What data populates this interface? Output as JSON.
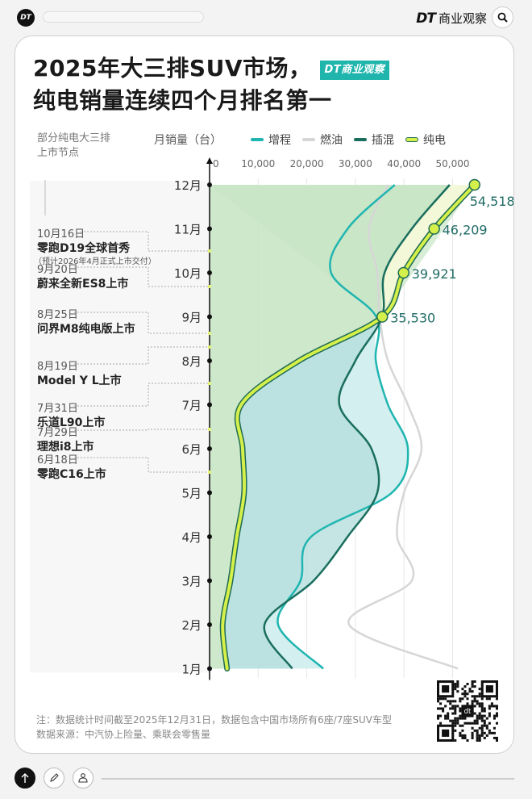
{
  "topbar": {
    "logo_text": "DT",
    "brand_mark": "DT",
    "brand_name": "商业观察",
    "search_icon": "search-icon"
  },
  "header": {
    "title_line1": "2025年大三排SUV市场，",
    "title_line2": "纯电销量连续四个月排名第一",
    "badge": "DT商业观察"
  },
  "left_panel": {
    "heading_line1": "部分纯电大三排",
    "heading_line2": "上市节点",
    "events": [
      {
        "date": "10月16日",
        "name": "零跑D19全球首秀",
        "sub": "（预计2026年4月正式上市交付）"
      },
      {
        "date": "9月20日",
        "name": "蔚来全新ES8上市",
        "sub": ""
      },
      {
        "date": "8月25日",
        "name": "问界M8纯电版上市",
        "sub": ""
      },
      {
        "date": "8月19日",
        "name": "Model Y L上市",
        "sub": ""
      },
      {
        "date": "7月31日",
        "name": "乐道L90上市",
        "sub": ""
      },
      {
        "date": "7月29日",
        "name": "理想i8上市",
        "sub": ""
      },
      {
        "date": "6月18日",
        "name": "零跑C16上市",
        "sub": ""
      }
    ]
  },
  "chart_data": {
    "type": "line",
    "orientation": "horizontal (months on vertical axis, sales on horizontal axis)",
    "title": "2025年大三排SUV市场，纯电销量连续四个月排名第一",
    "xlabel": "月销量（台）",
    "ylabel": "",
    "x_ticks": [
      "0",
      "10,000",
      "20,000",
      "30,000",
      "40,000",
      "50,000"
    ],
    "xlim": [
      0,
      55000
    ],
    "categories": [
      "1月",
      "2月",
      "3月",
      "4月",
      "5月",
      "6月",
      "7月",
      "8月",
      "9月",
      "10月",
      "11月",
      "12月"
    ],
    "grid": "vertical gridlines at each 10,000",
    "legend": [
      "增程",
      "燃油",
      "插混",
      "纯电"
    ],
    "legend_position": "top",
    "series": [
      {
        "name": "增程",
        "color": "#1fb5b0",
        "values": [
          23400,
          14100,
          18700,
          20900,
          37500,
          40800,
          36700,
          34200,
          34300,
          25000,
          28400,
          38100
        ]
      },
      {
        "name": "燃油",
        "color": "#d6d6d6",
        "values": [
          51100,
          28700,
          41600,
          38600,
          40000,
          43600,
          40800,
          36700,
          35000,
          34500,
          32800,
          36700
        ]
      },
      {
        "name": "插混",
        "color": "#1a7a6a",
        "values": [
          17000,
          11300,
          21400,
          28400,
          34500,
          33300,
          26700,
          30000,
          35500,
          36000,
          41600,
          49400
        ]
      },
      {
        "name": "纯电",
        "color": "#d5f04a",
        "values": [
          3600,
          2700,
          4300,
          5600,
          7100,
          6800,
          6500,
          18400,
          35530,
          39921,
          46209,
          54518
        ]
      }
    ],
    "annotations": [
      {
        "month": "9月",
        "series": "纯电",
        "label": "35,530"
      },
      {
        "month": "10月",
        "series": "纯电",
        "label": "39,921"
      },
      {
        "month": "11月",
        "series": "纯电",
        "label": "46,209"
      },
      {
        "month": "12月",
        "series": "纯电",
        "label": "54,518"
      }
    ]
  },
  "footer": {
    "note": "注：数据统计时间截至2025年12月31日，数据包含中国市场所有6座/7座SUV车型",
    "source": "数据来源：中汽协上险量、乘联会零售量",
    "qr_label": "dt"
  },
  "bottombar": {
    "buttons": [
      "arrow-up-icon",
      "pencil-icon",
      "user-icon"
    ]
  }
}
